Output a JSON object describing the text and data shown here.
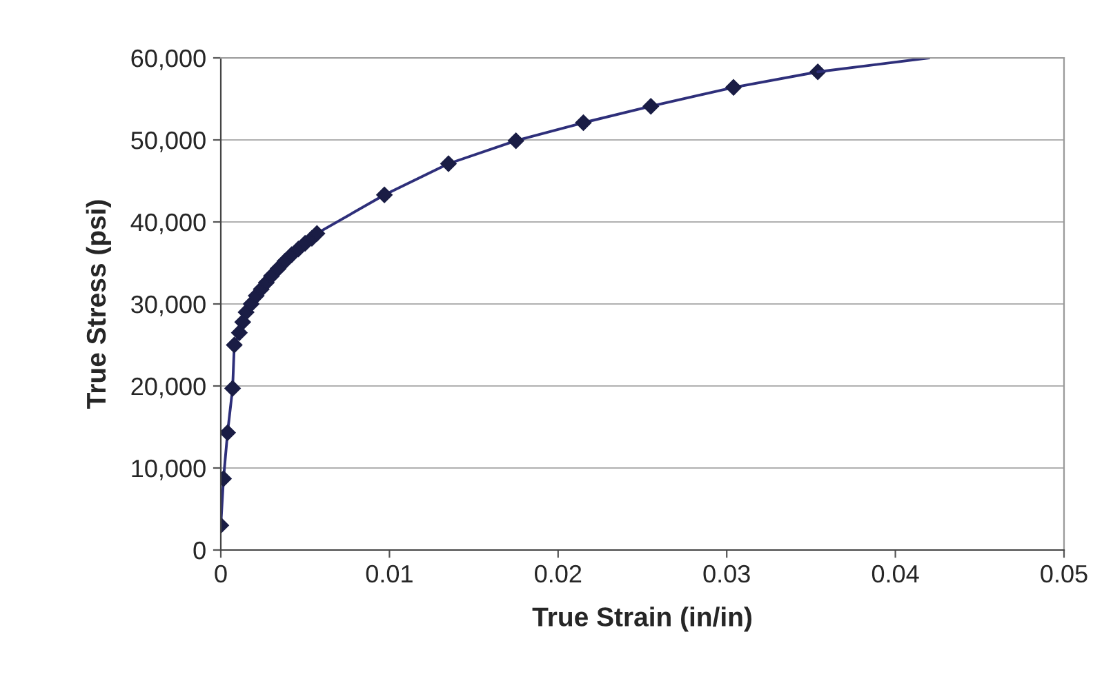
{
  "chart_data": {
    "type": "line",
    "xlabel": "True Strain (in/in)",
    "ylabel": "True Stress (psi)",
    "xlim": [
      0,
      0.05
    ],
    "xticks": [
      0,
      0.01,
      0.02,
      0.03,
      0.04,
      0.05
    ],
    "ylim": [
      0,
      60000
    ],
    "yticks": [
      {
        "value": 0,
        "label": "0"
      },
      {
        "value": 10000,
        "label": "10,000"
      },
      {
        "value": 20000,
        "label": "20,000"
      },
      {
        "value": 30000,
        "label": "30,000"
      },
      {
        "value": 40000,
        "label": "40,000"
      },
      {
        "value": 50000,
        "label": "50,000"
      },
      {
        "value": 60000,
        "label": "60,000"
      }
    ],
    "grid": "y",
    "legend": false,
    "series": [
      {
        "color": "#2e2f7a",
        "marker": "diamond",
        "x": [
          0,
          0.00016,
          0.0004,
          0.0007,
          0.0008,
          0.0011,
          0.0013,
          0.0015,
          0.0018,
          0.0021,
          0.0024,
          0.0027,
          0.003,
          0.0034,
          0.0038,
          0.0042,
          0.0046,
          0.005,
          0.0054,
          0.0057,
          0.0097,
          0.0135,
          0.0175,
          0.0215,
          0.0255,
          0.0304,
          0.0354
        ],
        "values": [
          3000,
          8700,
          14300,
          19700,
          25000,
          26500,
          27800,
          29000,
          30000,
          31000,
          31800,
          32600,
          33400,
          34300,
          35200,
          36000,
          36700,
          37400,
          38000,
          38600,
          43300,
          47100,
          49900,
          52100,
          54100,
          56400,
          58300
        ]
      },
      {
        "color": "#2e2f7a",
        "marker": "none",
        "x": [
          0.0354,
          0.042
        ],
        "values": [
          58300,
          60000
        ]
      }
    ]
  }
}
